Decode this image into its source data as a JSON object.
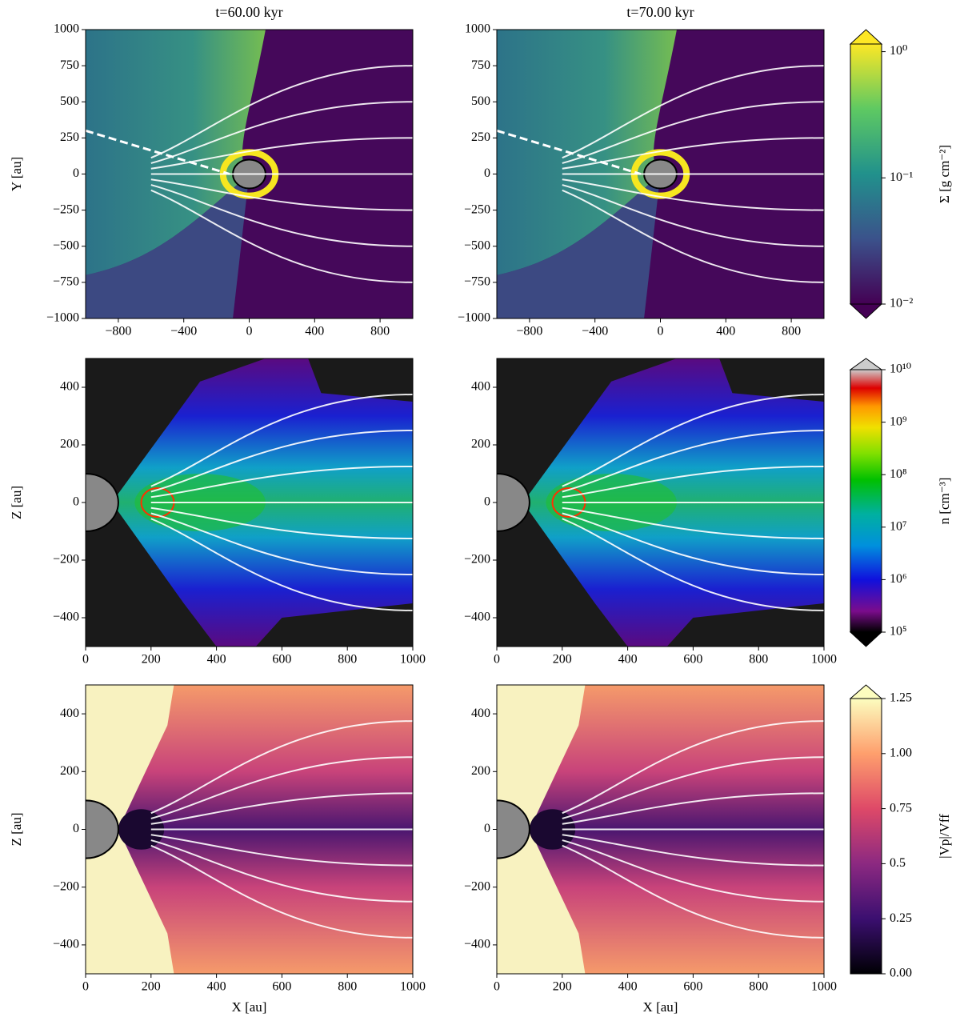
{
  "chart_data": [
    {
      "type": "heatmap",
      "colormap": "viridis",
      "title": "t=60.00 kyr",
      "ylabel": "Y [au]",
      "xlim": [
        -1000,
        1000
      ],
      "ylim": [
        -1000,
        1000
      ],
      "xticks": [
        {
          "value": -800,
          "label": "−800"
        },
        {
          "value": -400,
          "label": "−400"
        },
        0,
        400,
        800
      ],
      "yticks": [
        {
          "value": -1000,
          "label": "−1000"
        },
        {
          "value": -750,
          "label": "−750"
        },
        {
          "value": -500,
          "label": "−500"
        },
        {
          "value": -250,
          "label": "−250"
        },
        0,
        250,
        500,
        750,
        1000
      ]
    },
    {
      "type": "heatmap",
      "colormap": "viridis",
      "title": "t=70.00 kyr",
      "xlim": [
        -1000,
        1000
      ],
      "ylim": [
        -1000,
        1000
      ],
      "xticks": [
        {
          "value": -800,
          "label": "−800"
        },
        {
          "value": -400,
          "label": "−400"
        },
        0,
        400,
        800
      ],
      "yticks": [
        {
          "value": -1000,
          "label": "−1000"
        },
        {
          "value": -750,
          "label": "−750"
        },
        {
          "value": -500,
          "label": "−500"
        },
        {
          "value": -250,
          "label": "−250"
        },
        0,
        250,
        500,
        750,
        1000
      ]
    },
    {
      "type": "heatmap",
      "colormap": "spectral",
      "ylabel": "Z [au]",
      "xlim": [
        0,
        1000
      ],
      "ylim": [
        -500,
        500
      ],
      "xticks": [
        0,
        200,
        400,
        600,
        800,
        1000
      ],
      "yticks": [
        {
          "value": -400,
          "label": "−400"
        },
        {
          "value": -200,
          "label": "−200"
        },
        0,
        200,
        400
      ]
    },
    {
      "type": "heatmap",
      "colormap": "spectral",
      "xlim": [
        0,
        1000
      ],
      "ylim": [
        -500,
        500
      ],
      "xticks": [
        0,
        200,
        400,
        600,
        800,
        1000
      ],
      "yticks": [
        {
          "value": -400,
          "label": "−400"
        },
        {
          "value": -200,
          "label": "−200"
        },
        0,
        200,
        400
      ]
    },
    {
      "type": "heatmap",
      "colormap": "magma",
      "ylabel": "Z [au]",
      "xlabel": "X [au]",
      "xlim": [
        0,
        1000
      ],
      "ylim": [
        -500,
        500
      ],
      "xticks": [
        0,
        200,
        400,
        600,
        800,
        1000
      ],
      "yticks": [
        {
          "value": -400,
          "label": "−400"
        },
        {
          "value": -200,
          "label": "−200"
        },
        0,
        200,
        400
      ]
    },
    {
      "type": "heatmap",
      "colormap": "magma",
      "xlabel": "X [au]",
      "xlim": [
        0,
        1000
      ],
      "ylim": [
        -500,
        500
      ],
      "xticks": [
        0,
        200,
        400,
        600,
        800,
        1000
      ],
      "yticks": [
        {
          "value": -400,
          "label": "−400"
        },
        {
          "value": -200,
          "label": "−200"
        },
        0,
        200,
        400
      ]
    }
  ],
  "colorbars": [
    {
      "label": "Σ [g cm⁻²]",
      "colormap": "viridis",
      "scale": "log",
      "lim": [
        0.01,
        1.15
      ],
      "ticks": [
        {
          "value": 0.01,
          "label": "10⁻²"
        },
        {
          "value": 0.1,
          "label": "10⁻¹"
        },
        {
          "value": 1,
          "label": "10⁰"
        }
      ]
    },
    {
      "label": "n [cm⁻³]",
      "colormap": "spectral",
      "scale": "log",
      "lim": [
        100000,
        10000000000
      ],
      "ticks": [
        {
          "value": 100000,
          "label": "10⁵"
        },
        {
          "value": 1000000,
          "label": "10⁶"
        },
        {
          "value": 10000000,
          "label": "10⁷"
        },
        {
          "value": 100000000,
          "label": "10⁸"
        },
        {
          "value": 1000000000,
          "label": "10⁹"
        },
        {
          "value": 10000000000,
          "label": "10¹⁰"
        }
      ]
    },
    {
      "label": "|Vp|/Vff",
      "colormap": "magma",
      "scale": "linear",
      "lim": [
        0,
        1.25
      ],
      "ticks": [
        {
          "value": 0,
          "label": "0.00"
        },
        0.25,
        0.5,
        0.75,
        {
          "value": 1,
          "label": "1.00"
        },
        1.25
      ]
    }
  ]
}
